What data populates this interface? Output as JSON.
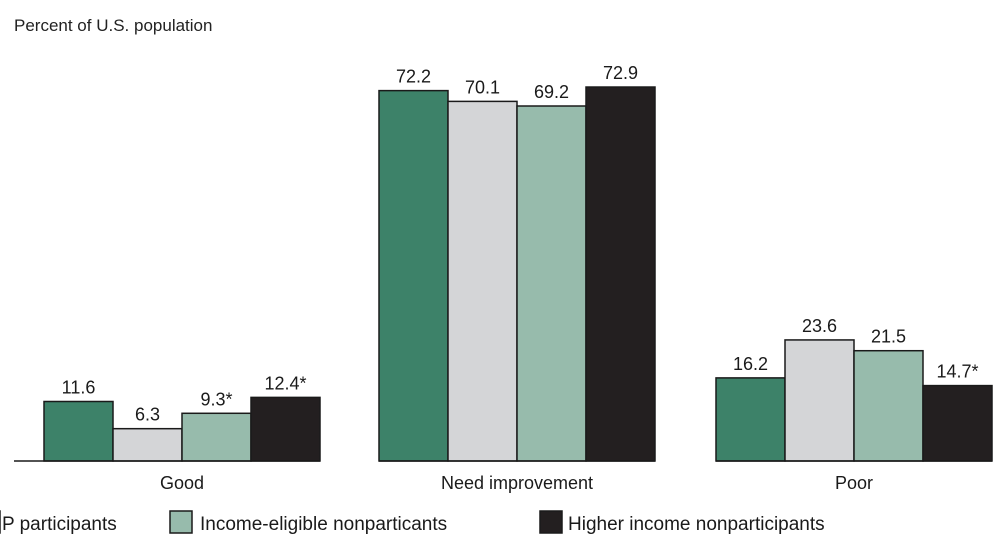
{
  "chart_data": {
    "type": "bar",
    "title": "",
    "ylabel": "Percent of U.S. population",
    "xlabel": "",
    "ylim": [
      0,
      80
    ],
    "grid": false,
    "legend_position": "bottom",
    "categories": [
      "Good",
      "Need improvement",
      "Poor"
    ],
    "series": [
      {
        "name": "P participants",
        "color": "#3d8269",
        "values": [
          11.6,
          72.2,
          16.2
        ],
        "labels": [
          "11.6",
          "72.2",
          "16.2"
        ]
      },
      {
        "name": "",
        "color": "#d4d5d7",
        "values": [
          6.3,
          70.1,
          23.6
        ],
        "labels": [
          "6.3",
          "70.1",
          "23.6"
        ]
      },
      {
        "name": "Income-eligible nonparticants",
        "color": "#97bbac",
        "values": [
          9.3,
          69.2,
          21.5
        ],
        "labels": [
          "9.3*",
          "69.2",
          "21.5"
        ]
      },
      {
        "name": "Higher income nonparticipants",
        "color": "#231f20",
        "values": [
          12.4,
          72.9,
          14.7
        ],
        "labels": [
          "12.4*",
          "72.9",
          "14.7*"
        ]
      }
    ]
  }
}
